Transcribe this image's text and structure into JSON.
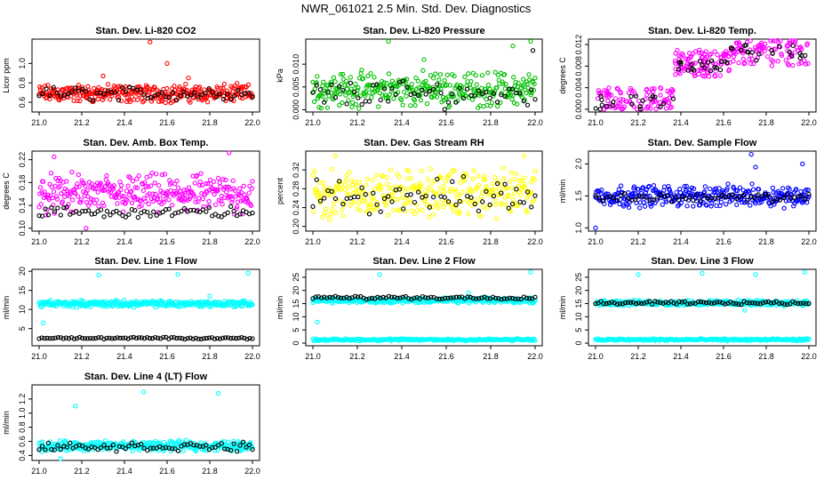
{
  "title": "NWR_061021  2.5 Min. Std. Dev. Diagnostics",
  "colors": {
    "red": "#ff0000",
    "green": "#00c000",
    "magenta": "#ff00ff",
    "yellow": "#ffff00",
    "blue": "#0000ff",
    "cyan": "#00ffff",
    "black": "#000000"
  },
  "chart_data": [
    {
      "type": "scatter",
      "title": "Stan. Dev. Li-820 CO2",
      "ylabel": "Licor ppm",
      "xlim": [
        21.0,
        22.0
      ],
      "ylim": [
        0.5,
        1.25
      ],
      "xticks": [
        "21.0",
        "21.2",
        "21.4",
        "21.6",
        "21.8",
        "22.0"
      ],
      "yticks": [
        "0.6",
        "0.8",
        "1.0"
      ],
      "series": [
        {
          "name": "red",
          "color": "red",
          "pattern": "band",
          "count": 320,
          "low": 0.58,
          "high": 0.8,
          "outliers": [
            [
              21.52,
              1.22
            ],
            [
              21.6,
              1.0
            ],
            [
              21.3,
              0.87
            ],
            [
              21.7,
              0.85
            ]
          ]
        },
        {
          "name": "black",
          "color": "black",
          "pattern": "band",
          "count": 60,
          "low": 0.6,
          "high": 0.78,
          "outliers": []
        }
      ]
    },
    {
      "type": "scatter",
      "title": "Stan. Dev. Li-820 Pressure",
      "ylabel": "kPa",
      "xlim": [
        21.0,
        22.0
      ],
      "ylim": [
        -0.0005,
        0.0155
      ],
      "xticks": [
        "21.0",
        "21.2",
        "21.4",
        "21.6",
        "21.8",
        "22.0"
      ],
      "yticks": [
        "0.000",
        "0.005",
        "0.010"
      ],
      "series": [
        {
          "name": "green",
          "color": "green",
          "pattern": "band",
          "count": 320,
          "low": 0.0,
          "high": 0.009,
          "outliers": [
            [
              21.34,
              0.015
            ],
            [
              21.98,
              0.015
            ],
            [
              21.5,
              0.011
            ],
            [
              21.9,
              0.014
            ]
          ]
        },
        {
          "name": "black",
          "color": "black",
          "pattern": "band",
          "count": 60,
          "low": 0.0,
          "high": 0.007,
          "outliers": [
            [
              21.99,
              0.013
            ]
          ]
        }
      ]
    },
    {
      "type": "scatter",
      "title": "Stan. Dev. Li-820 Temp.",
      "ylabel": "degrees C",
      "xlim": [
        21.0,
        22.0
      ],
      "ylim": [
        -0.0005,
        0.013
      ],
      "xticks": [
        "21.0",
        "21.2",
        "21.4",
        "21.6",
        "21.8",
        "22.0"
      ],
      "yticks": [
        "0.000",
        "0.004",
        "0.008",
        "0.012"
      ],
      "series": [
        {
          "name": "magenta",
          "color": "magenta",
          "pattern": "steps",
          "segments": [
            [
              21.0,
              21.37,
              0.0,
              0.004
            ],
            [
              21.37,
              21.63,
              0.006,
              0.011
            ],
            [
              21.63,
              22.0,
              0.008,
              0.013
            ]
          ],
          "count": 300,
          "outliers": []
        },
        {
          "name": "black",
          "color": "black",
          "pattern": "steps",
          "segments": [
            [
              21.0,
              21.37,
              0.0,
              0.0025
            ],
            [
              21.37,
              21.63,
              0.007,
              0.009
            ],
            [
              21.63,
              22.0,
              0.009,
              0.012
            ]
          ],
          "count": 60,
          "outliers": []
        }
      ]
    },
    {
      "type": "scatter",
      "title": "Stan. Dev. Amb. Box Temp.",
      "ylabel": "degrees C",
      "xlim": [
        21.0,
        22.0
      ],
      "ylim": [
        0.095,
        0.235
      ],
      "xticks": [
        "21.0",
        "21.2",
        "21.4",
        "21.6",
        "21.8",
        "22.0"
      ],
      "yticks": [
        "0.10",
        "0.14",
        "0.18",
        "0.22"
      ],
      "series": [
        {
          "name": "magenta",
          "color": "magenta",
          "pattern": "band",
          "count": 320,
          "low": 0.12,
          "high": 0.2,
          "outliers": [
            [
              21.07,
              0.225
            ],
            [
              21.89,
              0.232
            ],
            [
              21.22,
              0.1
            ]
          ]
        },
        {
          "name": "black",
          "color": "black",
          "pattern": "band",
          "count": 70,
          "low": 0.115,
          "high": 0.14,
          "outliers": []
        }
      ]
    },
    {
      "type": "scatter",
      "title": "Stan. Dev. Gas Stream RH",
      "ylabel": "percent",
      "xlim": [
        21.0,
        22.0
      ],
      "ylim": [
        0.19,
        0.36
      ],
      "xticks": [
        "21.0",
        "21.2",
        "21.4",
        "21.6",
        "21.8",
        "22.0"
      ],
      "yticks": [
        "0.20",
        "0.24",
        "0.28",
        "0.32"
      ],
      "series": [
        {
          "name": "yellow",
          "color": "yellow",
          "pattern": "band",
          "count": 320,
          "low": 0.21,
          "high": 0.33,
          "outliers": [
            [
              21.1,
              0.35
            ],
            [
              21.95,
              0.35
            ]
          ]
        },
        {
          "name": "black",
          "color": "black",
          "pattern": "band",
          "count": 60,
          "low": 0.22,
          "high": 0.31,
          "outliers": []
        }
      ]
    },
    {
      "type": "scatter",
      "title": "Stan. Dev. Sample Flow",
      "ylabel": "ml/min",
      "xlim": [
        21.0,
        22.0
      ],
      "ylim": [
        0.95,
        2.2
      ],
      "xticks": [
        "21.0",
        "21.2",
        "21.4",
        "21.6",
        "21.8",
        "22.0"
      ],
      "yticks": [
        "1.0",
        "1.5",
        "2.0"
      ],
      "series": [
        {
          "name": "blue",
          "color": "blue",
          "pattern": "band",
          "count": 320,
          "low": 1.3,
          "high": 1.7,
          "outliers": [
            [
              21.0,
              1.0
            ],
            [
              21.73,
              2.15
            ],
            [
              21.97,
              2.0
            ],
            [
              21.75,
              1.95
            ]
          ]
        },
        {
          "name": "black",
          "color": "black",
          "pattern": "band",
          "count": 60,
          "low": 1.4,
          "high": 1.55,
          "outliers": []
        }
      ]
    },
    {
      "type": "scatter",
      "title": "Stan. Dev. Line 1 Flow",
      "ylabel": "ml/min",
      "xlim": [
        21.0,
        22.0
      ],
      "ylim": [
        0.5,
        20.5
      ],
      "xticks": [
        "21.0",
        "21.2",
        "21.4",
        "21.6",
        "21.8",
        "22.0"
      ],
      "yticks": [
        "5",
        "10",
        "15",
        "20"
      ],
      "series": [
        {
          "name": "cyan",
          "color": "cyan",
          "pattern": "band",
          "count": 320,
          "low": 10.5,
          "high": 12.5,
          "outliers": [
            [
              21.02,
              6.5
            ],
            [
              21.28,
              19.0
            ],
            [
              21.65,
              19.2
            ],
            [
              21.98,
              19.5
            ],
            [
              21.8,
              13.5
            ]
          ]
        },
        {
          "name": "black",
          "color": "black",
          "pattern": "band",
          "count": 80,
          "low": 2.2,
          "high": 2.8,
          "outliers": []
        }
      ]
    },
    {
      "type": "scatter",
      "title": "Stan. Dev. Line 2 Flow",
      "ylabel": "ml/min",
      "xlim": [
        21.0,
        22.0
      ],
      "ylim": [
        -1.0,
        28.0
      ],
      "xticks": [
        "21.0",
        "21.2",
        "21.4",
        "21.6",
        "21.8",
        "22.0"
      ],
      "yticks": [
        "0",
        "5",
        "10",
        "15",
        "20",
        "25"
      ],
      "series": [
        {
          "name": "cyan",
          "color": "cyan",
          "pattern": "band",
          "count": 320,
          "low": 15.0,
          "high": 17.5,
          "outliers": [
            [
              21.02,
              8.0
            ],
            [
              21.3,
              26.0
            ],
            [
              21.98,
              27.0
            ],
            [
              21.7,
              19.0
            ]
          ]
        },
        {
          "name": "cyan-low",
          "color": "cyan",
          "pattern": "band",
          "count": 220,
          "low": 0.8,
          "high": 1.8,
          "outliers": []
        },
        {
          "name": "black",
          "color": "black",
          "pattern": "band",
          "count": 80,
          "low": 16.5,
          "high": 18.0,
          "outliers": []
        }
      ]
    },
    {
      "type": "scatter",
      "title": "Stan. Dev. Line 3 Flow",
      "ylabel": "ml/min",
      "xlim": [
        21.0,
        22.0
      ],
      "ylim": [
        -1.0,
        28.0
      ],
      "xticks": [
        "21.0",
        "21.2",
        "21.4",
        "21.6",
        "21.8",
        "22.0"
      ],
      "yticks": [
        "0",
        "5",
        "10",
        "15",
        "20",
        "25"
      ],
      "series": [
        {
          "name": "cyan",
          "color": "cyan",
          "pattern": "band",
          "count": 320,
          "low": 14.0,
          "high": 16.5,
          "outliers": [
            [
              21.2,
              26.0
            ],
            [
              21.5,
              26.5
            ],
            [
              21.75,
              26.0
            ],
            [
              21.98,
              27.0
            ],
            [
              21.7,
              12.5
            ]
          ]
        },
        {
          "name": "cyan-low",
          "color": "cyan",
          "pattern": "band",
          "count": 220,
          "low": 0.8,
          "high": 1.8,
          "outliers": []
        },
        {
          "name": "black",
          "color": "black",
          "pattern": "band",
          "count": 80,
          "low": 14.5,
          "high": 16.0,
          "outliers": []
        }
      ]
    },
    {
      "type": "scatter",
      "title": "Stan. Dev. Line 4 (LT) Flow",
      "ylabel": "ml/min",
      "xlim": [
        21.0,
        22.0
      ],
      "ylim": [
        0.33,
        1.4
      ],
      "xticks": [
        "21.0",
        "21.2",
        "21.4",
        "21.6",
        "21.8",
        "22.0"
      ],
      "yticks": [
        "0.4",
        "0.6",
        "0.8",
        "1.0",
        "1.2"
      ],
      "series": [
        {
          "name": "cyan",
          "color": "cyan",
          "pattern": "band",
          "count": 320,
          "low": 0.45,
          "high": 0.62,
          "outliers": [
            [
              21.17,
              1.1
            ],
            [
              21.49,
              1.3
            ],
            [
              21.84,
              1.28
            ],
            [
              21.1,
              0.35
            ]
          ]
        },
        {
          "name": "black",
          "color": "black",
          "pattern": "band",
          "count": 70,
          "low": 0.45,
          "high": 0.6,
          "outliers": []
        }
      ]
    }
  ]
}
